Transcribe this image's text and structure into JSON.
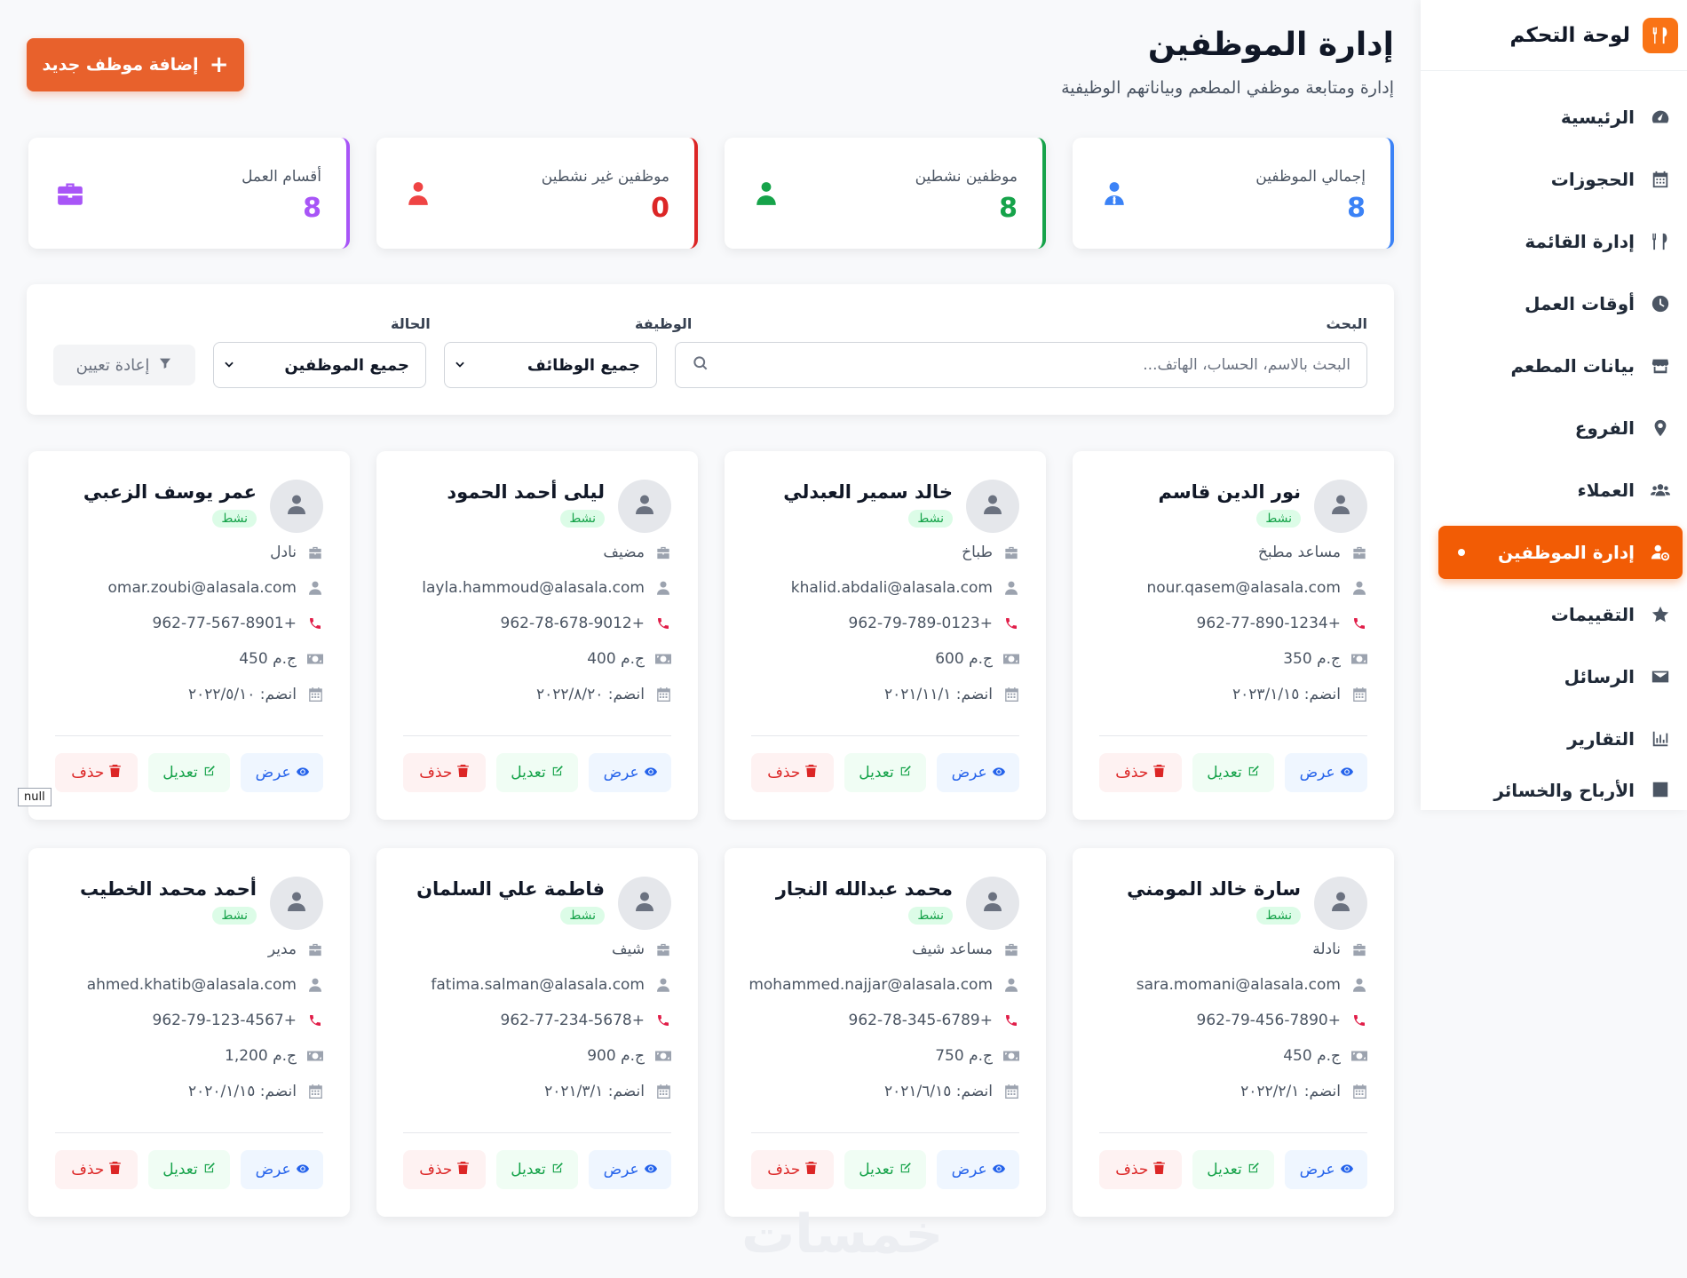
{
  "sidebar": {
    "title": "لوحة التحكم",
    "items": [
      {
        "label": "الرئيسية",
        "icon": "gauge-icon",
        "active": false
      },
      {
        "label": "الحجوزات",
        "icon": "calendar-icon",
        "active": false
      },
      {
        "label": "إدارة القائمة",
        "icon": "utensils-icon",
        "active": false
      },
      {
        "label": "أوقات العمل",
        "icon": "clock-icon",
        "active": false
      },
      {
        "label": "بيانات المطعم",
        "icon": "store-icon",
        "active": false
      },
      {
        "label": "الفروع",
        "icon": "map-pin-icon",
        "active": false
      },
      {
        "label": "العملاء",
        "icon": "users-icon",
        "active": false
      },
      {
        "label": "إدارة الموظفين",
        "icon": "user-gear-icon",
        "active": true
      },
      {
        "label": "التقييمات",
        "icon": "star-icon",
        "active": false
      },
      {
        "label": "الرسائل",
        "icon": "envelope-icon",
        "active": false
      },
      {
        "label": "التقارير",
        "icon": "bar-chart-icon",
        "active": false
      },
      {
        "label": "الأرباح والخسائر",
        "icon": "chart-icon",
        "active": false
      }
    ]
  },
  "header": {
    "title": "إدارة الموظفين",
    "subtitle": "إدارة ومتابعة موظفي المطعم وبياناتهم الوظيفية",
    "add_button": "إضافة موظف جديد"
  },
  "stats": [
    {
      "label": "إجمالي الموظفين",
      "value": "8",
      "color": "#3b82f6",
      "icon": "user-tie-icon"
    },
    {
      "label": "موظفين نشطين",
      "value": "8",
      "color": "#16a34a",
      "icon": "user-check-icon"
    },
    {
      "label": "موظفين غير نشطين",
      "value": "0",
      "color": "#dc2626",
      "icon": "user-x-icon"
    },
    {
      "label": "أقسام العمل",
      "value": "8",
      "color": "#a855f7",
      "icon": "briefcase-icon"
    }
  ],
  "filters": {
    "search_label": "البحث",
    "search_placeholder": "البحث بالاسم، الحساب، الهاتف...",
    "job_label": "الوظيفة",
    "job_value": "جميع الوظائف",
    "status_label": "الحالة",
    "status_value": "جميع الموظفين",
    "reset_label": "إعادة تعيين"
  },
  "employees": [
    {
      "name": "نور الدين قاسم",
      "status": "نشط",
      "role": "مساعد مطبخ",
      "email": "nour.qasem@alasala.com",
      "phone": "962-77-890-1234+",
      "salary": "350 ج.م",
      "joined": "انضم: ٢٠٢٣/١/١٥"
    },
    {
      "name": "خالد سمير العبدلي",
      "status": "نشط",
      "role": "طباخ",
      "email": "khalid.abdali@alasala.com",
      "phone": "962-79-789-0123+",
      "salary": "600 ج.م",
      "joined": "انضم: ٢٠٢١/١١/١"
    },
    {
      "name": "ليلى أحمد الحمود",
      "status": "نشط",
      "role": "مضيف",
      "email": "layla.hammoud@alasala.com",
      "phone": "962-78-678-9012+",
      "salary": "400 ج.م",
      "joined": "انضم: ٢٠٢٢/٨/٢٠"
    },
    {
      "name": "عمر يوسف الزعبي",
      "status": "نشط",
      "role": "نادل",
      "email": "omar.zoubi@alasala.com",
      "phone": "962-77-567-8901+",
      "salary": "450 ج.م",
      "joined": "انضم: ٢٠٢٢/٥/١٠"
    },
    {
      "name": "سارة خالد المومني",
      "status": "نشط",
      "role": "نادلة",
      "email": "sara.momani@alasala.com",
      "phone": "962-79-456-7890+",
      "salary": "450 ج.م",
      "joined": "انضم: ٢٠٢٢/٢/١"
    },
    {
      "name": "محمد عبدالله النجار",
      "status": "نشط",
      "role": "مساعد شيف",
      "email": "mohammed.najjar@alasala.com",
      "phone": "962-78-345-6789+",
      "salary": "750 ج.م",
      "joined": "انضم: ٢٠٢١/٦/١٥"
    },
    {
      "name": "فاطمة علي السلمان",
      "status": "نشط",
      "role": "شيف",
      "email": "fatima.salman@alasala.com",
      "phone": "962-77-234-5678+",
      "salary": "900 ج.م",
      "joined": "انضم: ٢٠٢١/٣/١"
    },
    {
      "name": "أحمد محمد الخطيب",
      "status": "نشط",
      "role": "مدير",
      "email": "ahmed.khatib@alasala.com",
      "phone": "962-79-123-4567+",
      "salary": "1,200 ج.م",
      "joined": "انضم: ٢٠٢٠/١/١٥"
    }
  ],
  "card_actions": {
    "view": "عرض",
    "edit": "تعديل",
    "delete": "حذف"
  },
  "null_tag": "null",
  "watermark": "خمسات"
}
